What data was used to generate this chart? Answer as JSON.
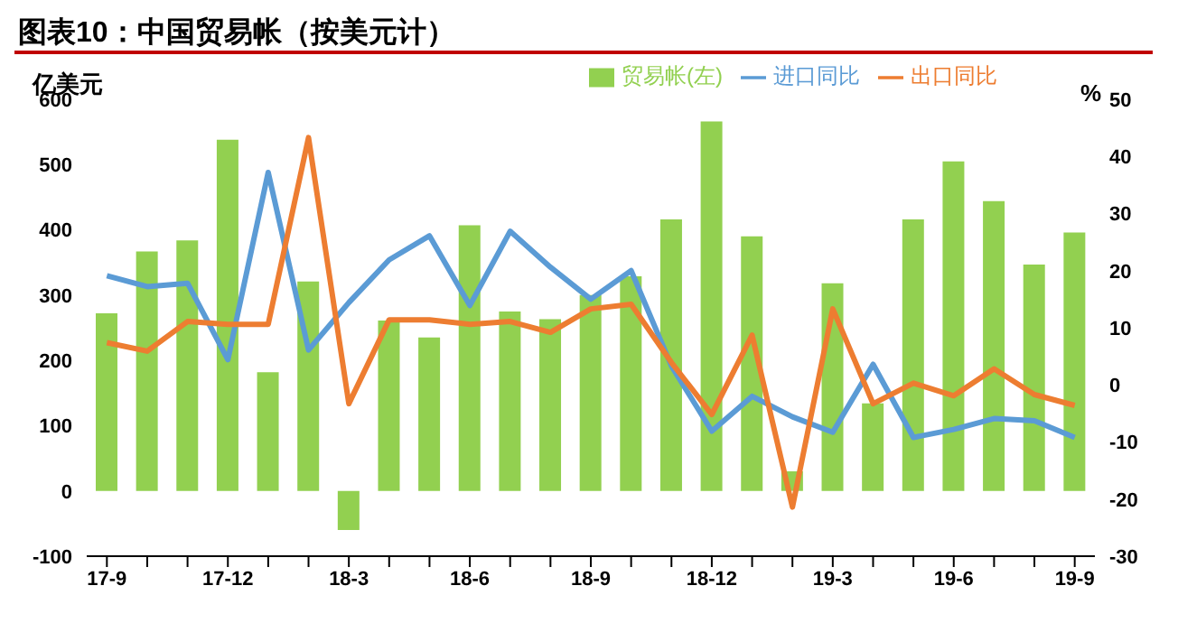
{
  "chart_data": {
    "type": "bar",
    "title": "图表10：中国贸易帐（按美元计）",
    "ylabel": "亿美元",
    "y2label": "%",
    "categories": [
      "17-9",
      null,
      null,
      "17-12",
      null,
      null,
      "18-3",
      null,
      null,
      "18-6",
      null,
      null,
      "18-9",
      null,
      null,
      "18-12",
      null,
      null,
      "19-3",
      null,
      null,
      "19-6",
      null,
      null,
      "19-9"
    ],
    "series": [
      {
        "name": "贸易帐(左)",
        "color": "#92d050",
        "values": [
          272,
          367,
          384,
          538,
          182,
          321,
          -60,
          261,
          235,
          407,
          275,
          263,
          300,
          329,
          416,
          566,
          390,
          30,
          318,
          134,
          416,
          505,
          444,
          347,
          396
        ]
      },
      {
        "name": "进口同比",
        "type": "line",
        "axis": "y2",
        "color": "#5b9bd5",
        "values": [
          19.1,
          17.2,
          17.8,
          4.4,
          37.2,
          6.1,
          14.4,
          21.9,
          26.1,
          13.9,
          26.9,
          20.6,
          15,
          20,
          3.3,
          -8.1,
          -2,
          -5.6,
          -8.3,
          3.6,
          -9.2,
          -7.8,
          -5.9,
          -6.3,
          -9.2
        ]
      },
      {
        "name": "出口同比",
        "type": "line",
        "axis": "y2",
        "color": "#ed7d31",
        "values": [
          7.4,
          5.9,
          11.1,
          10.6,
          10.6,
          43.3,
          -3.3,
          11.4,
          11.4,
          10.6,
          11.1,
          9.2,
          13.3,
          14.1,
          3.9,
          -5.2,
          8.7,
          -21.4,
          13.3,
          -3.3,
          0.3,
          -1.9,
          2.8,
          -1.7,
          -3.6
        ]
      }
    ],
    "ylim": [
      -100,
      600
    ],
    "yticks": [
      -100,
      0,
      100,
      200,
      300,
      400,
      500,
      600
    ],
    "y2lim": [
      -30,
      50
    ],
    "y2ticks": [
      -30,
      -20,
      -10,
      0,
      10,
      20,
      30,
      40,
      50
    ],
    "grid": false,
    "legend": "top",
    "marker": "none"
  }
}
